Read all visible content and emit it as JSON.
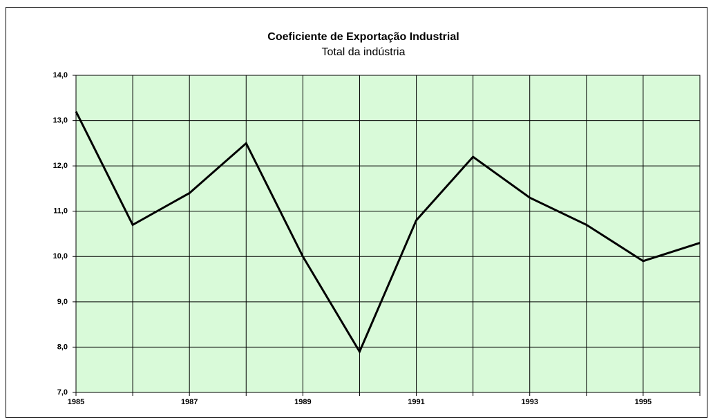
{
  "chart_data": {
    "type": "line",
    "title": "Coeficiente de Exportação Industrial",
    "subtitle": "Total da indústria",
    "categories": [
      "1985",
      null,
      "1987",
      null,
      "1989",
      null,
      "1991",
      null,
      "1993",
      null,
      "1995",
      null
    ],
    "values": [
      13.2,
      10.7,
      11.4,
      12.5,
      10.0,
      7.9,
      10.8,
      12.2,
      11.3,
      10.7,
      9.9,
      10.3
    ],
    "color": "#000000",
    "background": "#d9fad9",
    "ylim": [
      7,
      14
    ],
    "yticks": [
      {
        "value": 7,
        "label": "7,0"
      },
      {
        "value": 8,
        "label": "8,0"
      },
      {
        "value": 9,
        "label": "9,0"
      },
      {
        "value": 10,
        "label": "10,0"
      },
      {
        "value": 11,
        "label": "11,0"
      },
      {
        "value": 12,
        "label": "12,0"
      },
      {
        "value": 13,
        "label": "13,0"
      },
      {
        "value": 14,
        "label": "14,0"
      }
    ],
    "grid": true
  }
}
